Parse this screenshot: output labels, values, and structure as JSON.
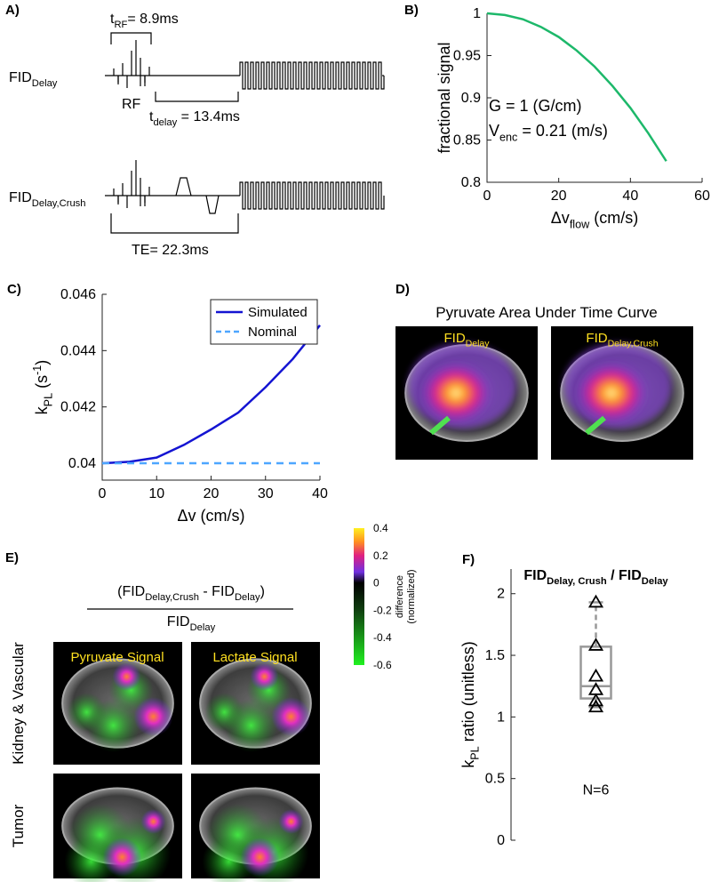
{
  "panel_a": {
    "label": "A)",
    "t_rf": [
      {
        "text": "t"
      },
      {
        "sub": "RF"
      },
      {
        "text": "= 8.9ms"
      }
    ],
    "fid_delay": [
      {
        "text": "FID"
      },
      {
        "sub": "Delay"
      }
    ],
    "rf": "RF",
    "t_delay": [
      {
        "text": "t"
      },
      {
        "sub": "delay"
      },
      {
        "text": " = 13.4ms"
      }
    ],
    "fid_delay_crush": [
      {
        "text": "FID"
      },
      {
        "sub": "Delay,Crush"
      }
    ],
    "te": "TE= 22.3ms"
  },
  "panel_d": {
    "label": "D)",
    "title": "Pyruvate Area Under Time Curve",
    "images": [
      [
        {
          "text": "FID"
        },
        {
          "sub": "Delay"
        }
      ],
      [
        {
          "text": "FID"
        },
        {
          "sub": "Delay,Crush"
        }
      ]
    ]
  },
  "panel_e": {
    "label": "E)",
    "numerator": [
      {
        "text": "(FID"
      },
      {
        "sub": "Delay,Crush"
      },
      {
        "text": " - FID"
      },
      {
        "sub": "Delay"
      },
      {
        "text": ")"
      }
    ],
    "denominator": [
      {
        "text": "FID"
      },
      {
        "sub": "Delay"
      }
    ],
    "columns": [
      "Pyruvate Signal",
      "Lactate Signal"
    ],
    "rows": [
      "Kidney & Vascular",
      "Tumor"
    ],
    "colorbar": {
      "lim": [
        -0.6,
        0.4
      ],
      "ticks": [
        0.4,
        0.2,
        0,
        -0.2,
        -0.4,
        -0.6
      ],
      "label": [
        "difference",
        "(normalized)"
      ]
    }
  },
  "chart_data": [
    {
      "panel": "B)",
      "type": "line",
      "ylabel": [
        {
          "text": "fractional signal"
        }
      ],
      "xlabel": [
        {
          "text": "Δv"
        },
        {
          "sub": "flow"
        },
        {
          "text": " (cm/s)"
        }
      ],
      "annotations": [
        [
          {
            "text": "G = 1 (G/cm)"
          }
        ],
        [
          {
            "text": "V"
          },
          {
            "sub": "enc"
          },
          {
            "text": " = 0.21 (m/s)"
          }
        ]
      ],
      "x": [
        0,
        5,
        10,
        15,
        20,
        25,
        30,
        35,
        40,
        45,
        50
      ],
      "series": [
        {
          "color": "#1db86a",
          "values": [
            1,
            0.998,
            0.993,
            0.984,
            0.972,
            0.956,
            0.937,
            0.914,
            0.888,
            0.858,
            0.825
          ]
        }
      ],
      "xlim": [
        0,
        60
      ],
      "xticks": [
        0,
        20,
        40,
        60
      ],
      "ylim": [
        0.8,
        1
      ],
      "yticks": [
        0.8,
        0.85,
        0.9,
        0.95,
        1
      ]
    },
    {
      "panel": "C)",
      "type": "line",
      "ylabel": [
        {
          "text": "k"
        },
        {
          "sub": "PL"
        },
        {
          "text": " (s"
        },
        {
          "sup": "-1"
        },
        {
          "text": ")"
        }
      ],
      "xlabel": [
        {
          "text": "Δv (cm/s)"
        }
      ],
      "x": [
        0,
        5,
        10,
        15,
        20,
        25,
        30,
        35,
        40
      ],
      "series": [
        {
          "name": "Simulated",
          "color": "#1414d2",
          "values": [
            0.04,
            0.04005,
            0.0402,
            0.04065,
            0.0412,
            0.0418,
            0.0427,
            0.0437,
            0.0449
          ]
        },
        {
          "name": "Nominal",
          "color": "#4da6ff",
          "dashed": true,
          "values": [
            0.04,
            0.04,
            0.04,
            0.04,
            0.04,
            0.04,
            0.04,
            0.04,
            0.04
          ]
        }
      ],
      "xlim": [
        0,
        40
      ],
      "xticks": [
        0,
        10,
        20,
        30,
        40
      ],
      "ylim": [
        0.0394,
        0.046
      ],
      "yticks": [
        0.04,
        0.042,
        0.044,
        0.046
      ],
      "legend": "top-right"
    },
    {
      "panel": "F)",
      "type": "box",
      "title": [
        {
          "text": "FID"
        },
        {
          "sub": "Delay, Crush"
        },
        {
          "text": " / FID"
        },
        {
          "sub": "Delay"
        }
      ],
      "ylabel": [
        {
          "text": "k"
        },
        {
          "sub": "PL"
        },
        {
          "text": " ratio (unitless)"
        }
      ],
      "ylim": [
        0,
        2.2
      ],
      "yticks": [
        0,
        0.5,
        1,
        1.5,
        2
      ],
      "box": {
        "whisker_low": 1.08,
        "q1": 1.15,
        "median": 1.25,
        "q3": 1.57,
        "whisker_high": 1.93
      },
      "points": [
        1.93,
        1.58,
        1.33,
        1.22,
        1.13,
        1.08
      ],
      "annotation": "N=6",
      "color": "#999999"
    }
  ]
}
